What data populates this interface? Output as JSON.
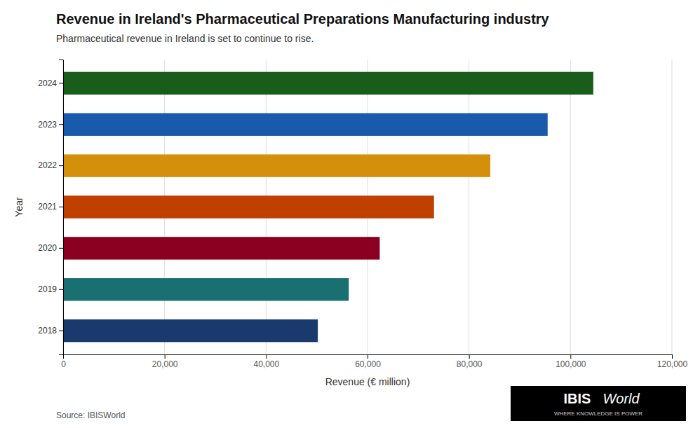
{
  "chart_data": {
    "type": "bar",
    "orientation": "horizontal",
    "title": "Revenue in Ireland's Pharmaceutical Preparations Manufacturing industry",
    "subtitle": "Pharmaceutical revenue in Ireland is set to continue to rise.",
    "xlabel": "Revenue (€ million)",
    "ylabel": "Year",
    "source": "Source: IBISWorld",
    "annotations": [
      "IBIS",
      "World",
      "WHERE KNOWLEDGE IS POWER"
    ],
    "categories": [
      "2018",
      "2019",
      "2020",
      "2021",
      "2022",
      "2023",
      "2024"
    ],
    "values": [
      50200,
      56300,
      62400,
      73100,
      84200,
      95500,
      104500
    ],
    "colors": [
      "#1a3a6e",
      "#1a7070",
      "#8b0020",
      "#c04000",
      "#d4900a",
      "#1a5aaa",
      "#1a5c1a"
    ],
    "xlim": [
      0,
      120000
    ],
    "xticks": [
      0,
      {
        "value": 20000,
        "label": "20,000"
      },
      {
        "value": 40000,
        "label": "40,000"
      },
      {
        "value": 60000,
        "label": "60,000"
      },
      {
        "value": 80000,
        "label": "80,000"
      },
      {
        "value": 100000,
        "label": "100,000"
      },
      {
        "value": 120000,
        "label": "120,000"
      }
    ],
    "grid": true
  }
}
